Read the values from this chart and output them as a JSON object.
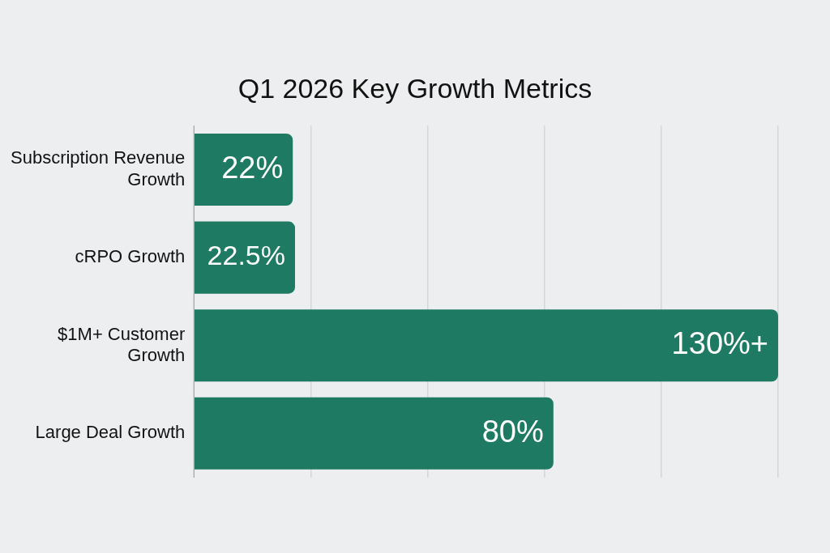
{
  "chart_data": {
    "type": "bar",
    "orientation": "horizontal",
    "title": "Q1 2026 Key Growth Metrics",
    "categories": [
      "Subscription Revenue Growth",
      "cRPO Growth",
      "$1M+ Customer Growth",
      "Large Deal Growth"
    ],
    "values": [
      22,
      22.5,
      130,
      80
    ],
    "value_labels": [
      "22%",
      "22.5%",
      "130%+",
      "80%"
    ],
    "color": "#1e7a62",
    "xlim": [
      0,
      130
    ],
    "xticks": [
      {
        "value": 0,
        "label": null
      },
      {
        "value": 26,
        "label": null
      },
      {
        "value": 52,
        "label": null
      },
      {
        "value": 78,
        "label": null
      },
      {
        "value": 104,
        "label": null
      },
      {
        "value": 130,
        "label": null
      }
    ],
    "grid": "x",
    "legend": false
  }
}
